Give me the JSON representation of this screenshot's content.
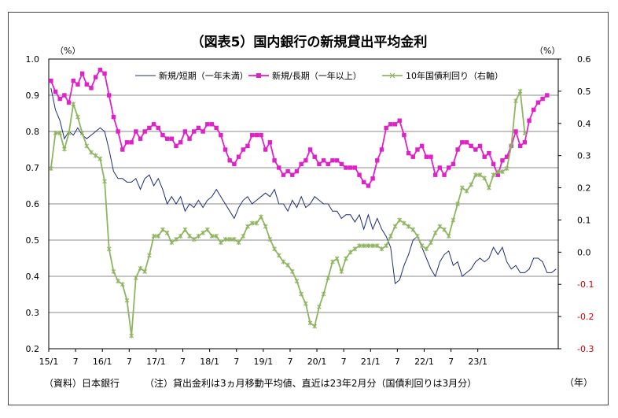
{
  "chart_data": {
    "type": "line",
    "title": "（図表5）国内銀行の新規貸出平均金利",
    "left_axis_unit": "（%）",
    "right_axis_unit": "（%）",
    "x_unit": "（年）",
    "ylim_left": [
      0.2,
      1.0
    ],
    "ylim_right": [
      -0.3,
      0.6
    ],
    "yticks_left": [
      "0.2",
      "0.3",
      "0.4",
      "0.5",
      "0.6",
      "0.7",
      "0.8",
      "0.9",
      "1.0"
    ],
    "yticks_right": [
      "-0.3",
      "-0.2",
      "-0.1",
      "0.0",
      "0.1",
      "0.2",
      "0.3",
      "0.4",
      "0.5",
      "0.6"
    ],
    "x_tick_labels": [
      "15/1",
      "7",
      "16/1",
      "7",
      "17/1",
      "7",
      "18/1",
      "7",
      "19/1",
      "7",
      "20/1",
      "7",
      "21/1",
      "7",
      "22/1",
      "7",
      "23/1"
    ],
    "grid": true,
    "legend_position": "top",
    "series": [
      {
        "name": "新規/短期（一年未満）",
        "axis": "left",
        "color": "#1f2d7a",
        "values": [
          0.92,
          0.86,
          0.83,
          0.78,
          0.8,
          0.79,
          0.81,
          0.79,
          0.78,
          0.79,
          0.8,
          0.81,
          0.8,
          0.75,
          0.69,
          0.67,
          0.67,
          0.66,
          0.66,
          0.67,
          0.64,
          0.67,
          0.68,
          0.65,
          0.67,
          0.64,
          0.6,
          0.62,
          0.6,
          0.62,
          0.58,
          0.6,
          0.59,
          0.61,
          0.59,
          0.61,
          0.62,
          0.64,
          0.62,
          0.6,
          0.58,
          0.56,
          0.59,
          0.61,
          0.62,
          0.6,
          0.61,
          0.62,
          0.63,
          0.62,
          0.64,
          0.6,
          0.6,
          0.58,
          0.61,
          0.59,
          0.62,
          0.59,
          0.6,
          0.62,
          0.61,
          0.6,
          0.6,
          0.58,
          0.58,
          0.56,
          0.57,
          0.57,
          0.55,
          0.57,
          0.53,
          0.57,
          0.53,
          0.56,
          0.53,
          0.51,
          0.48,
          0.38,
          0.39,
          0.43,
          0.46,
          0.5,
          0.51,
          0.48,
          0.45,
          0.42,
          0.4,
          0.44,
          0.46,
          0.47,
          0.43,
          0.44,
          0.4,
          0.41,
          0.42,
          0.44,
          0.45,
          0.44,
          0.45,
          0.48,
          0.46,
          0.48,
          0.44,
          0.42,
          0.43,
          0.41,
          0.41,
          0.42,
          0.45,
          0.45,
          0.44,
          0.41,
          0.41,
          0.42
        ]
      },
      {
        "name": "新規/長期（一年以上）",
        "axis": "left",
        "color": "#e020c8",
        "values": [
          0.94,
          0.91,
          0.89,
          0.9,
          0.88,
          0.94,
          0.93,
          0.96,
          0.93,
          0.92,
          0.95,
          0.97,
          0.96,
          0.9,
          0.84,
          0.8,
          0.75,
          0.77,
          0.77,
          0.8,
          0.78,
          0.8,
          0.81,
          0.82,
          0.81,
          0.79,
          0.78,
          0.78,
          0.76,
          0.77,
          0.8,
          0.78,
          0.8,
          0.81,
          0.8,
          0.82,
          0.82,
          0.81,
          0.79,
          0.75,
          0.72,
          0.71,
          0.73,
          0.75,
          0.76,
          0.79,
          0.79,
          0.79,
          0.75,
          0.77,
          0.72,
          0.7,
          0.68,
          0.69,
          0.68,
          0.69,
          0.71,
          0.72,
          0.75,
          0.73,
          0.71,
          0.72,
          0.71,
          0.72,
          0.72,
          0.71,
          0.7,
          0.7,
          0.7,
          0.68,
          0.66,
          0.65,
          0.67,
          0.72,
          0.75,
          0.81,
          0.82,
          0.82,
          0.83,
          0.79,
          0.74,
          0.73,
          0.75,
          0.76,
          0.73,
          0.73,
          0.68,
          0.7,
          0.68,
          0.7,
          0.71,
          0.75,
          0.77,
          0.77,
          0.76,
          0.75,
          0.76,
          0.73,
          0.74,
          0.71,
          0.68,
          0.72,
          0.73,
          0.76,
          0.8,
          0.76,
          0.77,
          0.83,
          0.86,
          0.88,
          0.89,
          0.9
        ]
      },
      {
        "name": "10年国債利回り（右軸）",
        "axis": "right",
        "color": "#8fb560",
        "values": [
          0.26,
          0.37,
          0.37,
          0.32,
          0.37,
          0.46,
          0.42,
          0.37,
          0.33,
          0.31,
          0.3,
          0.29,
          0.22,
          0.01,
          -0.06,
          -0.09,
          -0.1,
          -0.15,
          -0.26,
          -0.08,
          -0.05,
          -0.06,
          -0.01,
          0.05,
          0.05,
          0.07,
          0.06,
          0.03,
          0.04,
          0.05,
          0.07,
          0.05,
          0.04,
          0.05,
          0.06,
          0.07,
          0.05,
          0.05,
          0.03,
          0.04,
          0.04,
          0.04,
          0.03,
          0.05,
          0.08,
          0.09,
          0.09,
          0.11,
          0.08,
          0.04,
          0.01,
          -0.01,
          -0.03,
          -0.04,
          -0.06,
          -0.09,
          -0.13,
          -0.16,
          -0.22,
          -0.23,
          -0.17,
          -0.13,
          -0.08,
          -0.03,
          -0.02,
          -0.06,
          -0.02,
          0.0,
          0.01,
          0.02,
          0.02,
          0.02,
          0.02,
          0.02,
          0.01,
          0.02,
          0.05,
          0.08,
          0.1,
          0.09,
          0.08,
          0.07,
          0.05,
          0.02,
          0.01,
          0.03,
          0.06,
          0.08,
          0.07,
          0.05,
          0.1,
          0.15,
          0.2,
          0.19,
          0.21,
          0.24,
          0.24,
          0.23,
          0.2,
          0.24,
          0.25,
          0.25,
          0.26,
          0.33,
          0.47,
          0.5,
          0.37
        ]
      }
    ],
    "source": "（資料）日本銀行",
    "note": "（注）貸出金利は3ヵ月移動平均値、直近は23年2月分（国債利回りは3月分）"
  }
}
